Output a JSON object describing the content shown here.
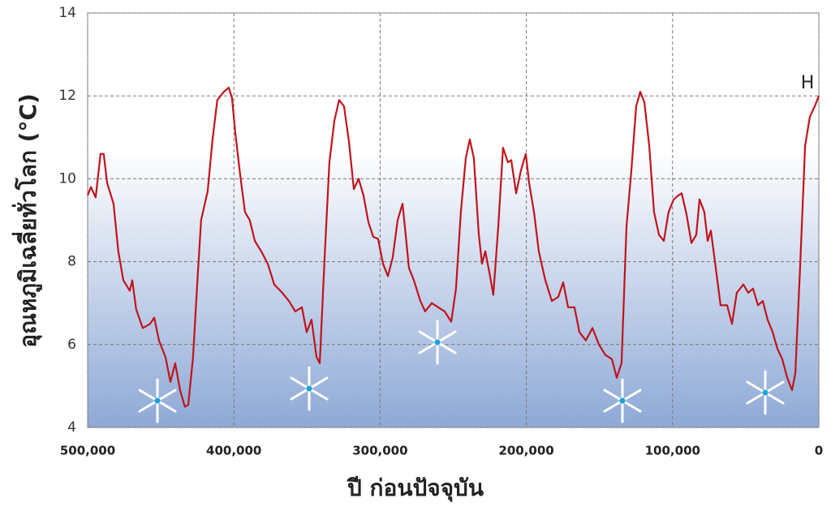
{
  "chart_data": {
    "type": "line",
    "y_label": "อุณหภูมิเฉลี่ยทั่วโลก (°C)",
    "x_label": "ปี ก่อนปัจจุบัน",
    "annotation": "H",
    "color": "#c0141c",
    "grid": true,
    "xlim": [
      500000,
      0
    ],
    "ylim": [
      4,
      14
    ],
    "xticks": [
      {
        "value": 500000,
        "label": "500,000"
      },
      {
        "value": 400000,
        "label": "400,000"
      },
      {
        "value": 300000,
        "label": "300,000"
      },
      {
        "value": 200000,
        "label": "200,000"
      },
      {
        "value": 100000,
        "label": "100,000"
      },
      0
    ],
    "yticks": [
      4,
      6,
      8,
      10,
      12,
      14
    ],
    "x": [
      500000,
      497800,
      494500,
      491200,
      489000,
      486700,
      482300,
      479000,
      475600,
      471200,
      469500,
      466800,
      462300,
      457300,
      454500,
      451200,
      446800,
      443400,
      440100,
      436800,
      433500,
      431200,
      427900,
      425100,
      422400,
      417900,
      414600,
      411300,
      406800,
      403500,
      401300,
      399000,
      395700,
      392400,
      389100,
      385700,
      381300,
      376800,
      372400,
      366900,
      362400,
      358000,
      353500,
      350200,
      346900,
      343500,
      341300,
      338000,
      334700,
      331300,
      328000,
      324700,
      321300,
      318000,
      314700,
      311400,
      308000,
      304700,
      301400,
      298000,
      294700,
      291400,
      288000,
      284700,
      282500,
      280300,
      276900,
      272500,
      269200,
      264700,
      260300,
      255900,
      251400,
      248100,
      244800,
      241400,
      238700,
      235900,
      232500,
      230300,
      228100,
      224800,
      222600,
      219200,
      215900,
      212600,
      210300,
      207000,
      203700,
      200400,
      198100,
      194800,
      191500,
      187000,
      182600,
      178200,
      174800,
      171500,
      167100,
      163700,
      159300,
      154800,
      150400,
      146000,
      141500,
      138200,
      134900,
      131500,
      128200,
      124900,
      122100,
      119300,
      116000,
      112700,
      109300,
      106000,
      102700,
      99300,
      96000,
      93800,
      90500,
      87100,
      83800,
      81600,
      78300,
      76000,
      73800,
      70500,
      67200,
      62700,
      59400,
      56100,
      51600,
      48300,
      45000,
      41600,
      38300,
      35000,
      31600,
      28300,
      25000,
      21600,
      18300,
      16100,
      12800,
      9400,
      6100,
      2800,
      0
    ],
    "values": [
      9.6,
      9.8,
      9.55,
      10.6,
      10.6,
      9.9,
      9.4,
      8.25,
      7.55,
      7.3,
      7.55,
      6.85,
      6.4,
      6.5,
      6.65,
      6.1,
      5.7,
      5.1,
      5.55,
      4.9,
      4.5,
      4.55,
      5.7,
      7.45,
      9.0,
      9.7,
      10.95,
      11.9,
      12.1,
      12.2,
      11.95,
      11.1,
      10.1,
      9.2,
      9.0,
      8.5,
      8.25,
      7.95,
      7.45,
      7.25,
      7.05,
      6.8,
      6.9,
      6.3,
      6.6,
      5.7,
      5.55,
      8.05,
      10.4,
      11.4,
      11.9,
      11.75,
      10.9,
      9.75,
      10.0,
      9.6,
      8.95,
      8.6,
      8.55,
      7.95,
      7.65,
      8.1,
      9.0,
      9.4,
      8.65,
      7.85,
      7.55,
      7.05,
      6.8,
      7.0,
      6.9,
      6.8,
      6.55,
      7.35,
      9.2,
      10.5,
      10.95,
      10.5,
      8.65,
      7.95,
      8.25,
      7.65,
      7.2,
      8.85,
      10.75,
      10.4,
      10.45,
      9.65,
      10.2,
      10.6,
      9.9,
      9.2,
      8.25,
      7.55,
      7.05,
      7.15,
      7.5,
      6.9,
      6.9,
      6.3,
      6.1,
      6.4,
      6.0,
      5.75,
      5.65,
      5.2,
      5.55,
      8.85,
      10.2,
      11.75,
      12.1,
      11.85,
      10.8,
      9.2,
      8.65,
      8.5,
      9.2,
      9.5,
      9.6,
      9.65,
      9.15,
      8.45,
      8.65,
      9.5,
      9.2,
      8.5,
      8.75,
      7.85,
      6.95,
      6.95,
      6.5,
      7.25,
      7.45,
      7.25,
      7.35,
      6.95,
      7.05,
      6.6,
      6.3,
      5.9,
      5.65,
      5.2,
      4.9,
      5.3,
      7.85,
      10.8,
      11.5,
      11.75,
      12.0
    ]
  }
}
